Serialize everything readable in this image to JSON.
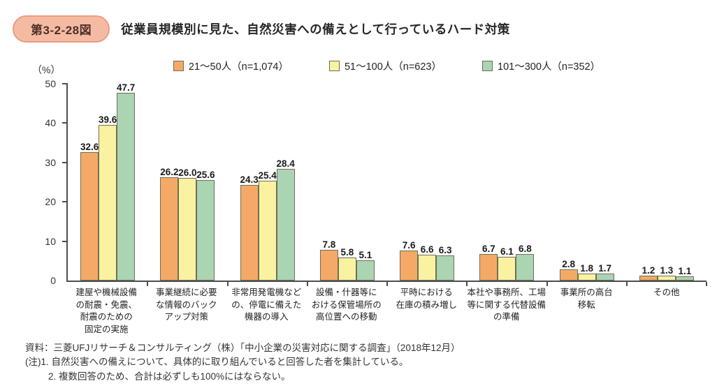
{
  "header": {
    "figure_label": "第3-2-28図",
    "title": "従業員規模別に見た、自然災害への備えとして行っているハード対策"
  },
  "chart_data": {
    "type": "bar",
    "title": "従業員規模別に見た、自然災害への備えとして行っているハード対策",
    "unit_label": "（%）",
    "ylim": [
      0,
      50
    ],
    "yticks": [
      0,
      10,
      20,
      30,
      40,
      50
    ],
    "grid": false,
    "legend_position": "top",
    "value_labels": true,
    "axis_color": "#4D4D4D",
    "bar_border_color": "#6E6E58",
    "categories": [
      "建屋や機械設備\nの耐震・免震、\n耐震のための\n固定の実施",
      "事業継続に必要\nな情報のバック\nアップ対策",
      "非常用発電機など\nの、停電に備えた\n機器の導入",
      "設備・什器等に\nおける保管場所の\n高位置への移動",
      "平時における\n在庫の積み増し",
      "本社や事務所、工場\n等に関する代替設備\nの準備",
      "事業所の高台\n移転",
      "その他"
    ],
    "series": [
      {
        "name": "21～50人（n=1,074）",
        "color": "#F4AA66",
        "values": [
          32.6,
          26.2,
          24.3,
          7.8,
          7.6,
          6.7,
          2.8,
          1.2
        ]
      },
      {
        "name": "51～100人（n=623）",
        "color": "#FAF2A0",
        "values": [
          39.6,
          26.0,
          25.4,
          5.8,
          6.6,
          6.1,
          1.8,
          1.3
        ]
      },
      {
        "name": "101～300人（n=352）",
        "color": "#ABD4B2",
        "values": [
          47.7,
          25.6,
          28.4,
          5.1,
          6.3,
          6.8,
          1.7,
          1.1
        ]
      }
    ]
  },
  "footer": {
    "source": "資料：三菱UFJリサーチ＆コンサルティング（株）「中小企業の災害対応に関する調査」（2018年12月）",
    "note1": "(注)1. 自然災害への備えについて、具体的に取り組んでいると回答した者を集計している。",
    "note2": "2. 複数回答のため、合計は必ずしも100%にはならない。"
  }
}
